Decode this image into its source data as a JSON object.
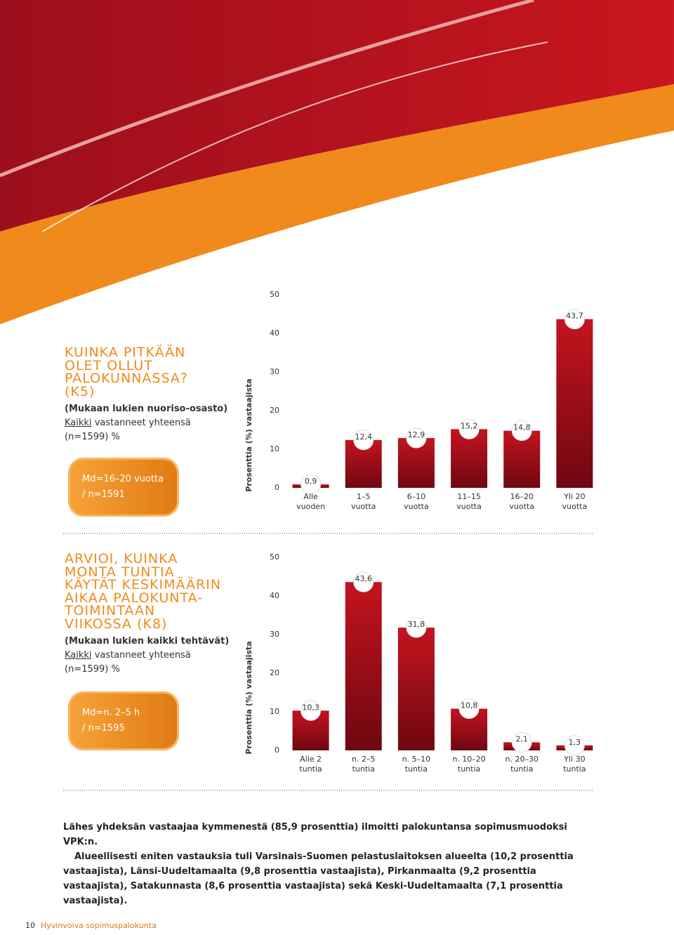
{
  "chart_data": [
    {
      "type": "bar",
      "y_label": "Prosenttia (%) vastaajista",
      "categories": [
        [
          "Alle",
          "vuoden"
        ],
        [
          "1–5",
          "vuotta"
        ],
        [
          "6–10",
          "vuotta"
        ],
        [
          "11–15",
          "vuotta"
        ],
        [
          "16–20",
          "vuotta"
        ],
        [
          "Yli 20",
          "vuotta"
        ]
      ],
      "values": [
        0.9,
        12.4,
        12.9,
        15.2,
        14.8,
        43.7
      ],
      "value_labels": [
        "0,9",
        "12,4",
        "12,9",
        "15,2",
        "14,8",
        "43,7"
      ],
      "color": "#a3101c",
      "ylim": [
        0,
        50
      ],
      "yticks": [
        0,
        10,
        20,
        30,
        40,
        50
      ],
      "grid": false
    },
    {
      "type": "bar",
      "y_label": "Prosenttia (%) vastaajista",
      "categories": [
        [
          "Alle 2",
          "tuntia"
        ],
        [
          "n. 2–5",
          "tuntia"
        ],
        [
          "n. 5–10",
          "tuntia"
        ],
        [
          "n. 10–20",
          "tuntia"
        ],
        [
          "n. 20–30",
          "tuntia"
        ],
        [
          "Yli 30",
          "tuntia"
        ]
      ],
      "values": [
        10.3,
        43.6,
        31.8,
        10.8,
        2.1,
        1.3
      ],
      "value_labels": [
        "10,3",
        "43,6",
        "31,8",
        "10,8",
        "2,1",
        "1,3"
      ],
      "color": "#a3101c",
      "ylim": [
        0,
        50
      ],
      "yticks": [
        0,
        10,
        20,
        30,
        40,
        50
      ],
      "grid": false
    }
  ],
  "sections": [
    {
      "heading": [
        "KUINKA PITKÄÄN",
        "OLET OLLUT",
        "PALOKUNNASSA?",
        "(K5)"
      ],
      "note": "(Mukaan lukien nuoriso-osasto)",
      "sample_link": "Kaikki",
      "sample": "vastanneet yhteensä (n=1599) %",
      "median": [
        "Md=16–20 vuotta",
        "/ n=1591"
      ]
    },
    {
      "heading": [
        "ARVIOI, KUINKA",
        "MONTA TUNTIA",
        "KÄYTÄT KESKIMÄÄRIN",
        "AIKAA PALOKUNTA-",
        "TOIMINTAAN",
        "VIIKOSSA (K8)"
      ],
      "note": "(Mukaan lukien kaikki tehtävät)",
      "sample_link": "Kaikki",
      "sample": "vastanneet yhteensä (n=1599) %",
      "median": [
        "Md=n. 2–5 h",
        "/ n=1595"
      ]
    }
  ],
  "body": [
    "Lähes yhdeksän vastaajaa kymmenestä (85,9 prosenttia) ilmoitti palokuntansa sopimusmuodoksi VPK:n.",
    "Alueellisesti eniten vastauksia tuli Varsinais-Suomen pelastuslaitoksen alueelta (10,2 prosenttia vastaajista), Länsi-Uudeltamaalta (9,8 prosenttia vastaajista), Pirkanmaalta (9,2 prosenttia vastaajista), Satakunnasta (8,6 prosenttia vastaajista) sekä Keski-Uudeltamaalta (7,1 prosenttia vastaajista)."
  ],
  "footer": {
    "page": "10",
    "title": "Hyvinvoiva sopimuspalokunta"
  }
}
